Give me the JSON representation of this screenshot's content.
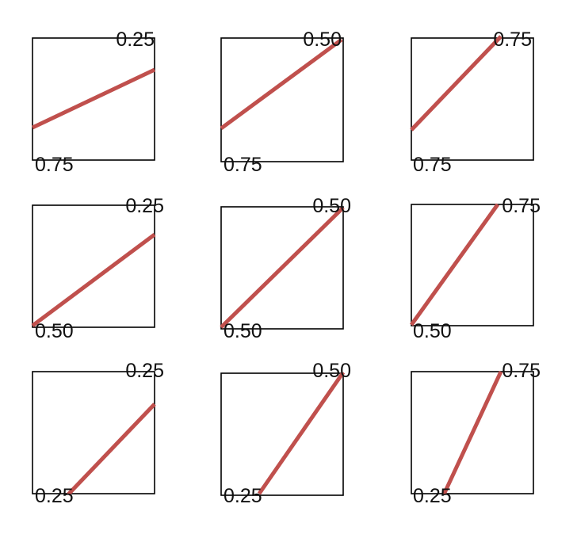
{
  "line_color": "#c0504d",
  "panels": [
    {
      "start_label": "0.75",
      "end_label": "0.25",
      "start": 0.25,
      "end": 0.75
    },
    {
      "start_label": "0.75",
      "end_label": "0.50",
      "start": 0.25,
      "end": 1.0
    },
    {
      "start_label": "0.75",
      "end_label": "0.75",
      "start": 0.25,
      "end": 1.0
    },
    {
      "start_label": "0.50",
      "end_label": "0.25",
      "start": 0.0,
      "end": 0.75
    },
    {
      "start_label": "0.50",
      "end_label": "0.50",
      "start": 0.0,
      "end": 1.0
    },
    {
      "start_label": "0.50",
      "end_label": "0.75",
      "start": 0.0,
      "end": 1.0
    },
    {
      "start_label": "0.25",
      "end_label": "0.25",
      "start": 0.0,
      "end": 0.75
    },
    {
      "start_label": "0.25",
      "end_label": "0.50",
      "start": 0.0,
      "end": 1.0
    },
    {
      "start_label": "0.25",
      "end_label": "0.75",
      "start": 0.0,
      "end": 1.0
    }
  ]
}
